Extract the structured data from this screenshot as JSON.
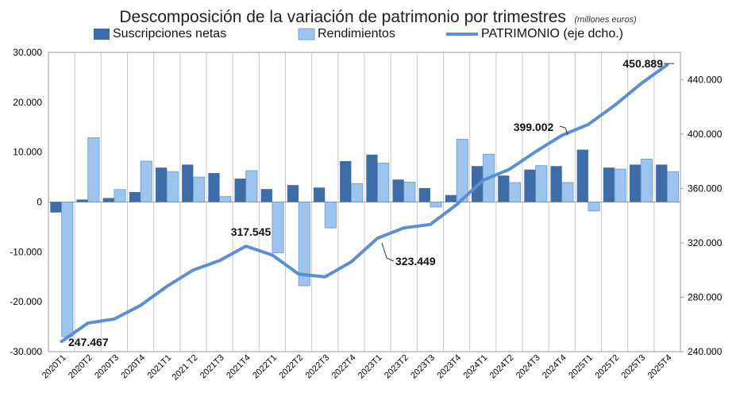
{
  "chart_data": {
    "type": "bar",
    "title": "Descomposición de la variación de patrimonio por trimestres",
    "subtitle": "(millones euros)",
    "categories": [
      "2020T1",
      "2020T2",
      "2020T3",
      "2020T4",
      "2021T1",
      "2021T2",
      "2021T3",
      "2021T4",
      "2022T1",
      "2022T2",
      "2022T3",
      "2022T4",
      "2023T1",
      "2023T2",
      "2023T3",
      "2023T4",
      "2024T1",
      "2024T2",
      "2024T3",
      "2024T4",
      "2025T1",
      "2025T2",
      "2025T3",
      "2025T4"
    ],
    "category_labels": [
      "2020T1",
      "2020T2",
      "2020T3",
      "2020T4",
      "2021T1",
      "2021 T2",
      "2021T3",
      "2021T4",
      "2022T1",
      "2022T2",
      "2022T3",
      "2022T4",
      "2023T1",
      "2023T2",
      "2023T3",
      "2023T4",
      "2024T1",
      "2024T2",
      "2024T3",
      "2024T4",
      "2025T1",
      "2025T2",
      "2025T3",
      "2025T4"
    ],
    "series": [
      {
        "name": "Suscripciones netas",
        "type": "bar",
        "axis": "left",
        "color": "#3e6ca6",
        "values": [
          -2100,
          500,
          800,
          2000,
          6900,
          7500,
          5800,
          4700,
          2600,
          3400,
          2900,
          8200,
          9500,
          4500,
          2800,
          1400,
          7200,
          5300,
          6500,
          7200,
          10500,
          6900,
          7500,
          7500
        ]
      },
      {
        "name": "Rendimientos",
        "type": "bar",
        "axis": "left",
        "color": "#9dc3ef",
        "values": [
          -27000,
          12900,
          2500,
          8200,
          6100,
          5000,
          1100,
          6300,
          -10200,
          -16800,
          -5200,
          3700,
          7800,
          4000,
          -1000,
          12600,
          9600,
          3900,
          7300,
          3900,
          -1800,
          6600,
          8600,
          6100
        ]
      },
      {
        "name": "PATRIMONIO (eje dcho.)",
        "type": "line",
        "axis": "right",
        "color": "#5b8fd0",
        "values": [
          247467,
          261000,
          264000,
          274000,
          288000,
          300000,
          307000,
          317545,
          311000,
          297000,
          295000,
          306000,
          323449,
          331000,
          333500,
          348000,
          366000,
          374000,
          387000,
          399002,
          407000,
          421000,
          437000,
          450889
        ]
      }
    ],
    "y_left": {
      "min": -30000,
      "max": 30000,
      "step": 10000,
      "tick_labels": [
        "-30.000",
        "-20.000",
        "-10.000",
        "0",
        "10.000",
        "20.000",
        "30.000"
      ]
    },
    "y_right": {
      "min": 240000,
      "max": 460000,
      "tick_values": [
        240000,
        280000,
        320000,
        360000,
        400000,
        440000
      ],
      "tick_labels": [
        "240.000",
        "280.000",
        "320.000",
        "360.000",
        "400.000",
        "440.000"
      ]
    },
    "annotations": [
      {
        "index": 0,
        "text": "247.467"
      },
      {
        "index": 7,
        "text": "317.545"
      },
      {
        "index": 12,
        "text": "323.449"
      },
      {
        "index": 19,
        "text": "399.002"
      },
      {
        "index": 23,
        "text": "450.889"
      }
    ],
    "legend_position": "top",
    "grid": "vertical"
  }
}
